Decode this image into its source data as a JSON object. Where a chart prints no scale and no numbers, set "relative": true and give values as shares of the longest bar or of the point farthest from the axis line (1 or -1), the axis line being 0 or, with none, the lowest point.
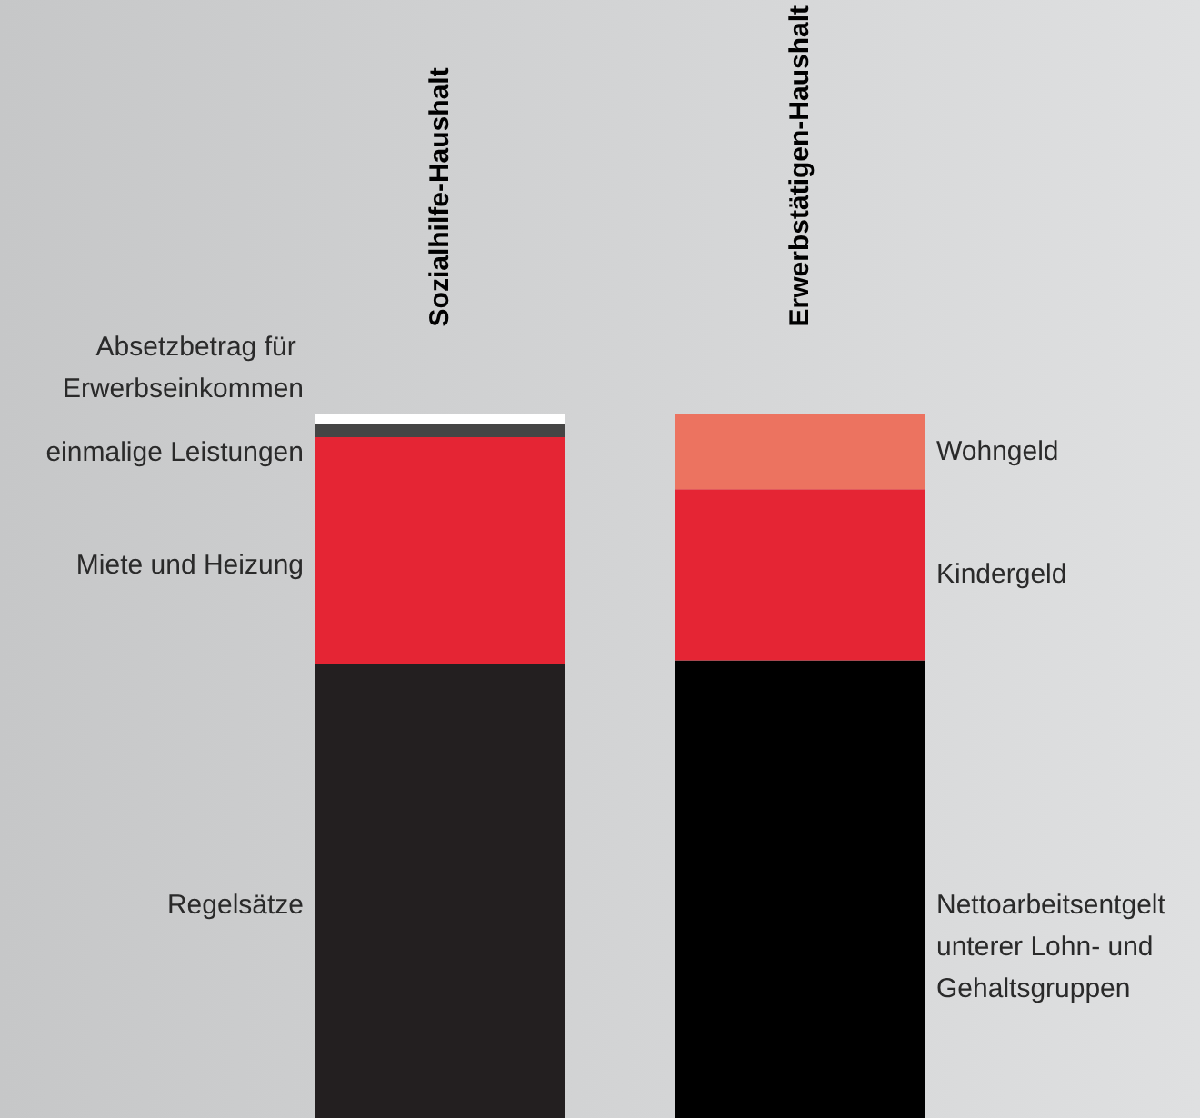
{
  "chart_data": {
    "type": "bar",
    "stacked": true,
    "relative": true,
    "categories": [
      "Sozialhilfe-Haushalt",
      "Erwerbstätigen-Haushalt"
    ],
    "series": [
      {
        "name": "Regelsätze",
        "color": "#231f20",
        "values": [
          0.645,
          null
        ]
      },
      {
        "name": "Miete und Heizung",
        "color": "#e52534",
        "values": [
          0.322,
          null
        ]
      },
      {
        "name": "einmalige Leistungen",
        "color": "#454545",
        "values": [
          0.018,
          null
        ]
      },
      {
        "name": "Absetzbetrag für Erwerbseinkommen",
        "color": "#ffffff",
        "values": [
          0.015,
          null
        ]
      },
      {
        "name": "Nettoarbeitsentgelt unterer Lohn- und Gehaltsgruppen",
        "color": "#000000",
        "values": [
          null,
          0.65
        ]
      },
      {
        "name": "Kindergeld",
        "color": "#e52534",
        "values": [
          null,
          0.243
        ]
      },
      {
        "name": "Wohngeld",
        "color": "#ec7360",
        "values": [
          null,
          0.107
        ]
      }
    ],
    "orientation": "vertical"
  }
}
